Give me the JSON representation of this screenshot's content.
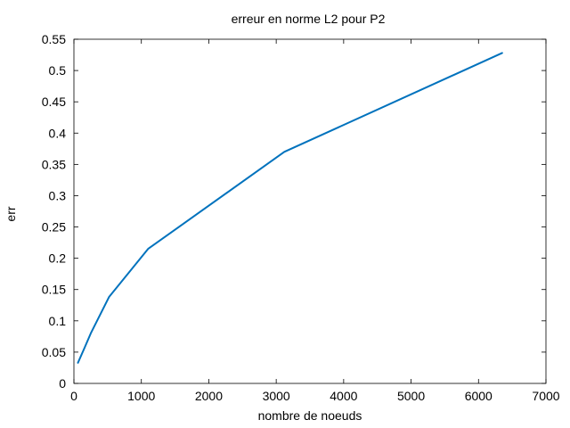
{
  "chart_data": {
    "type": "line",
    "title": "erreur en norme L2 pour P2",
    "xlabel": "nombre de noeuds",
    "ylabel": "err",
    "xlim": [
      0,
      7000
    ],
    "ylim": [
      0,
      0.55
    ],
    "xticks": [
      0,
      1000,
      2000,
      3000,
      4000,
      5000,
      6000,
      7000
    ],
    "yticks": [
      0,
      0.05,
      0.1,
      0.15,
      0.2,
      0.25,
      0.3,
      0.35,
      0.4,
      0.45,
      0.5,
      0.55
    ],
    "xtick_labels": [
      "0",
      "1000",
      "2000",
      "3000",
      "4000",
      "5000",
      "6000",
      "7000"
    ],
    "ytick_labels": [
      "0",
      "0.05",
      "0.1",
      "0.15",
      "0.2",
      "0.25",
      "0.3",
      "0.35",
      "0.4",
      "0.45",
      "0.5",
      "0.55"
    ],
    "grid": false,
    "series": [
      {
        "color": "#0072bd",
        "x": [
          60,
          150,
          250,
          520,
          1100,
          3120,
          6350
        ],
        "y": [
          0.033,
          0.055,
          0.08,
          0.138,
          0.215,
          0.37,
          0.528
        ]
      }
    ]
  }
}
